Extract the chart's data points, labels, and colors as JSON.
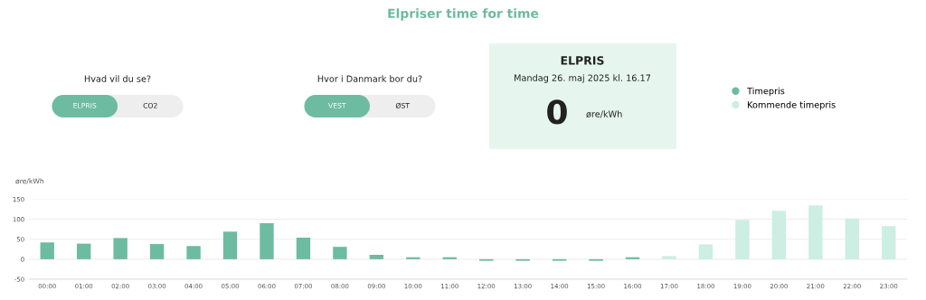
{
  "chart_data": [
    {
      "type": "other",
      "title": "Hvad vil du se?",
      "annotations": [
        "ELPRIS",
        "CO2"
      ]
    },
    {
      "type": "other",
      "title": "Hvor i Danmark bor du?",
      "annotations": [
        "VEST",
        "ØST"
      ]
    },
    {
      "type": "other",
      "title": "ELPRIS",
      "annotations": [
        "Mandag 26. maj 2025 kl. 16.17",
        "0",
        "øre/kWh"
      ]
    },
    {
      "type": "bar",
      "title": "Elpriser time for time",
      "ylabel": "øre/kWh",
      "categories": [
        "00:00",
        "01:00",
        "02:00",
        "03:00",
        "04:00",
        "05:00",
        "06:00",
        "07:00",
        "08:00",
        "09:00",
        "10:00",
        "11:00",
        "12:00",
        "13:00",
        "14:00",
        "15:00",
        "16:00",
        "17:00",
        "18:00",
        "19:00",
        "20:00",
        "21:00",
        "22:00",
        "23:00"
      ],
      "series": [
        {
          "name": "Timepris",
          "color": "#6dbba0",
          "values": [
            42,
            39,
            53,
            38,
            33,
            69,
            90,
            54,
            31,
            11,
            5,
            5,
            -4,
            -4,
            -4,
            -4,
            5,
            null,
            null,
            null,
            null,
            null,
            null,
            null
          ]
        },
        {
          "name": "Kommende timepris",
          "color": "#cdeee2",
          "values": [
            null,
            null,
            null,
            null,
            null,
            null,
            null,
            null,
            null,
            null,
            null,
            null,
            null,
            null,
            null,
            null,
            null,
            8,
            37,
            98,
            121,
            135,
            102,
            83
          ]
        }
      ],
      "ylim": [
        -50,
        150
      ],
      "yticks": [
        -50,
        0,
        50,
        100,
        150
      ],
      "grid": "y",
      "legend": "top right"
    }
  ]
}
